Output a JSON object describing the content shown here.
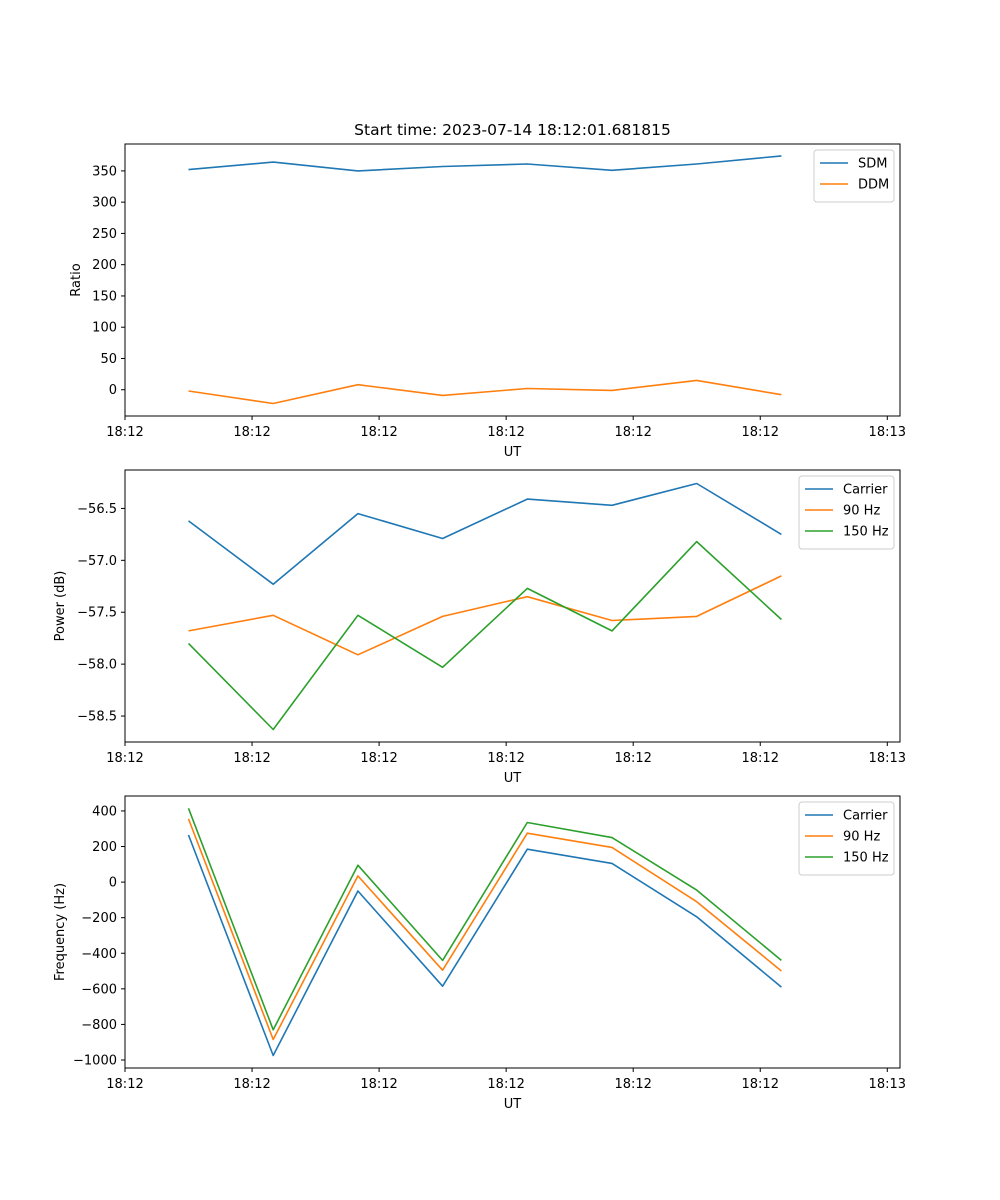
{
  "chart_data": [
    {
      "type": "line",
      "title": "Start time: 2023-07-14 18:12:01.681815",
      "xlabel": "UT",
      "ylabel": "Ratio",
      "x": [
        0,
        1,
        2,
        3,
        4,
        5,
        6,
        7
      ],
      "xlim": [
        -0.75,
        8.4
      ],
      "xticks": [
        {
          "pos": -0.75,
          "label": "18:12"
        },
        {
          "pos": 0.75,
          "label": "18:12"
        },
        {
          "pos": 2.25,
          "label": "18:12"
        },
        {
          "pos": 3.75,
          "label": "18:12"
        },
        {
          "pos": 5.25,
          "label": "18:12"
        },
        {
          "pos": 6.75,
          "label": "18:12"
        },
        {
          "pos": 8.25,
          "label": "18:13"
        }
      ],
      "ylim": [
        -42,
        393
      ],
      "yticks": [
        0,
        50,
        100,
        150,
        200,
        250,
        300,
        350
      ],
      "legend_position": "top-right",
      "series": [
        {
          "name": "SDM",
          "color": "#1f77b4",
          "values": [
            352,
            364,
            350,
            357,
            361,
            351,
            361,
            374
          ]
        },
        {
          "name": "DDM",
          "color": "#ff7f0e",
          "values": [
            -2,
            -22,
            8,
            -9,
            2,
            -1,
            15,
            -8
          ]
        }
      ]
    },
    {
      "type": "line",
      "title": "",
      "xlabel": "UT",
      "ylabel": "Power (dB)",
      "x": [
        0,
        1,
        2,
        3,
        4,
        5,
        6,
        7
      ],
      "xlim": [
        -0.75,
        8.4
      ],
      "xticks": [
        {
          "pos": -0.75,
          "label": "18:12"
        },
        {
          "pos": 0.75,
          "label": "18:12"
        },
        {
          "pos": 2.25,
          "label": "18:12"
        },
        {
          "pos": 3.75,
          "label": "18:12"
        },
        {
          "pos": 5.25,
          "label": "18:12"
        },
        {
          "pos": 6.75,
          "label": "18:12"
        },
        {
          "pos": 8.25,
          "label": "18:13"
        }
      ],
      "ylim": [
        -58.75,
        -56.13
      ],
      "yticks": [
        -58.5,
        -58.0,
        -57.5,
        -57.0,
        -56.5
      ],
      "ytick_labels": [
        "−58.5",
        "−58.0",
        "−57.5",
        "−57.0",
        "−56.5"
      ],
      "legend_position": "top-right",
      "series": [
        {
          "name": "Carrier",
          "color": "#1f77b4",
          "values": [
            -56.62,
            -57.23,
            -56.55,
            -56.79,
            -56.41,
            -56.47,
            -56.26,
            -56.75
          ]
        },
        {
          "name": "90 Hz",
          "color": "#ff7f0e",
          "values": [
            -57.68,
            -57.53,
            -57.91,
            -57.54,
            -57.35,
            -57.58,
            -57.54,
            -57.15
          ]
        },
        {
          "name": "150 Hz",
          "color": "#2ca02c",
          "values": [
            -57.8,
            -58.63,
            -57.53,
            -58.03,
            -57.27,
            -57.68,
            -56.82,
            -57.57
          ]
        }
      ]
    },
    {
      "type": "line",
      "title": "",
      "xlabel": "UT",
      "ylabel": "Frequency (Hz)",
      "x": [
        0,
        1,
        2,
        3,
        4,
        5,
        6,
        7
      ],
      "xlim": [
        -0.75,
        8.4
      ],
      "xticks": [
        {
          "pos": -0.75,
          "label": "18:12"
        },
        {
          "pos": 0.75,
          "label": "18:12"
        },
        {
          "pos": 2.25,
          "label": "18:12"
        },
        {
          "pos": 3.75,
          "label": "18:12"
        },
        {
          "pos": 5.25,
          "label": "18:12"
        },
        {
          "pos": 6.75,
          "label": "18:12"
        },
        {
          "pos": 8.25,
          "label": "18:13"
        }
      ],
      "ylim": [
        -1045,
        484
      ],
      "yticks": [
        -1000,
        -800,
        -600,
        -400,
        -200,
        0,
        200,
        400
      ],
      "ytick_labels": [
        "−1000",
        "−800",
        "−600",
        "−400",
        "−200",
        "0",
        "200",
        "400"
      ],
      "legend_position": "top-right",
      "series": [
        {
          "name": "Carrier",
          "color": "#1f77b4",
          "values": [
            265,
            -975,
            -50,
            -585,
            185,
            105,
            -195,
            -590
          ]
        },
        {
          "name": "90 Hz",
          "color": "#ff7f0e",
          "values": [
            355,
            -885,
            35,
            -495,
            275,
            195,
            -110,
            -500
          ]
        },
        {
          "name": "150 Hz",
          "color": "#2ca02c",
          "values": [
            415,
            -830,
            95,
            -440,
            335,
            250,
            -45,
            -440
          ]
        }
      ]
    }
  ]
}
